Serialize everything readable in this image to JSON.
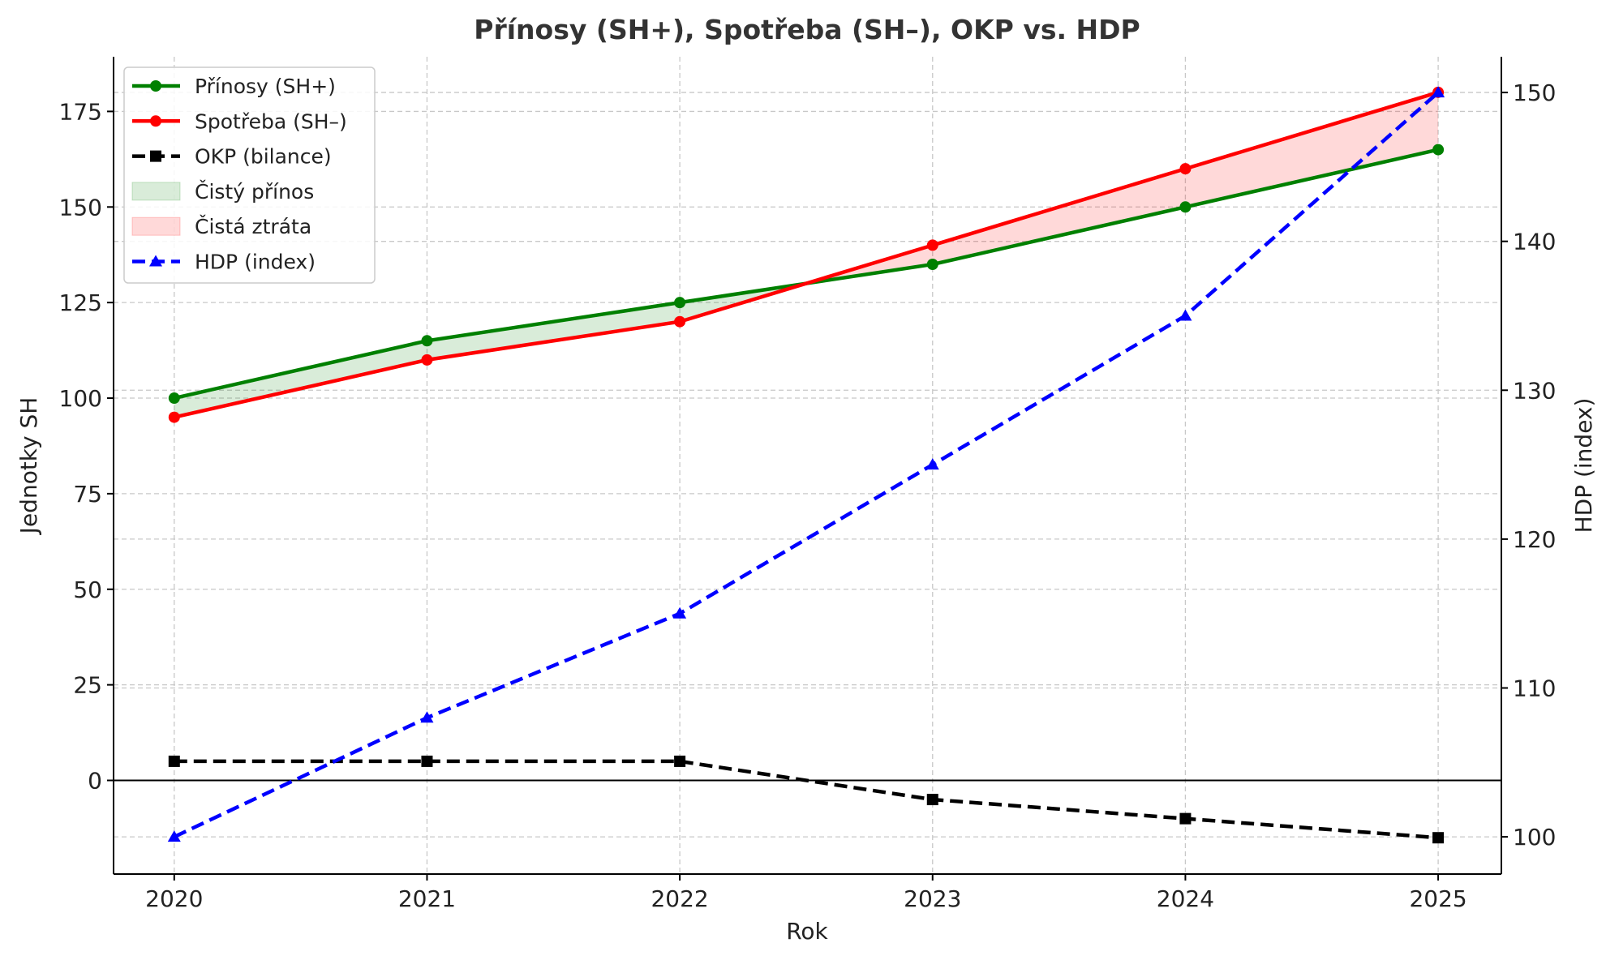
{
  "chart_data": {
    "type": "line",
    "title": "Přínosy (SH+), Spotřeba (SH–), OKP vs. HDP",
    "xlabel": "Rok",
    "ylabel": "Jednotky SH",
    "ylabel_right": "HDP (index)",
    "x": [
      2020,
      2021,
      2022,
      2023,
      2024,
      2025
    ],
    "xlim": [
      2019.76,
      2025.25
    ],
    "ylim": [
      -24.5,
      189.3
    ],
    "ylim_right": [
      97.5,
      152.4
    ],
    "yticks": [
      0,
      25,
      50,
      75,
      100,
      125,
      150,
      175
    ],
    "yticks_right": [
      100,
      110,
      120,
      130,
      140,
      150
    ],
    "grid": true,
    "legend_position": "top-left",
    "series": [
      {
        "name": "Přínosy (SH+)",
        "values": [
          100,
          115,
          125,
          135,
          150,
          165
        ],
        "color": "#008000",
        "marker": "circle",
        "style": "solid",
        "axis": "left"
      },
      {
        "name": "Spotřeba (SH–)",
        "values": [
          95,
          110,
          120,
          140,
          160,
          180
        ],
        "color": "#ff0000",
        "marker": "circle",
        "style": "solid",
        "axis": "left"
      },
      {
        "name": "OKP (bilance)",
        "values": [
          5,
          5,
          5,
          -5,
          -10,
          -15
        ],
        "color": "#000000",
        "marker": "square",
        "style": "dashed",
        "axis": "left"
      },
      {
        "name": "HDP (index)",
        "values": [
          100,
          108,
          115,
          125,
          135,
          150
        ],
        "color": "#0000ff",
        "marker": "triangle",
        "style": "dashed",
        "axis": "right"
      }
    ],
    "fills": [
      {
        "name": "Čistý přínos",
        "color": "#008000",
        "opacity": 0.15
      },
      {
        "name": "Čistá ztráta",
        "color": "#ff0000",
        "opacity": 0.15
      }
    ]
  }
}
